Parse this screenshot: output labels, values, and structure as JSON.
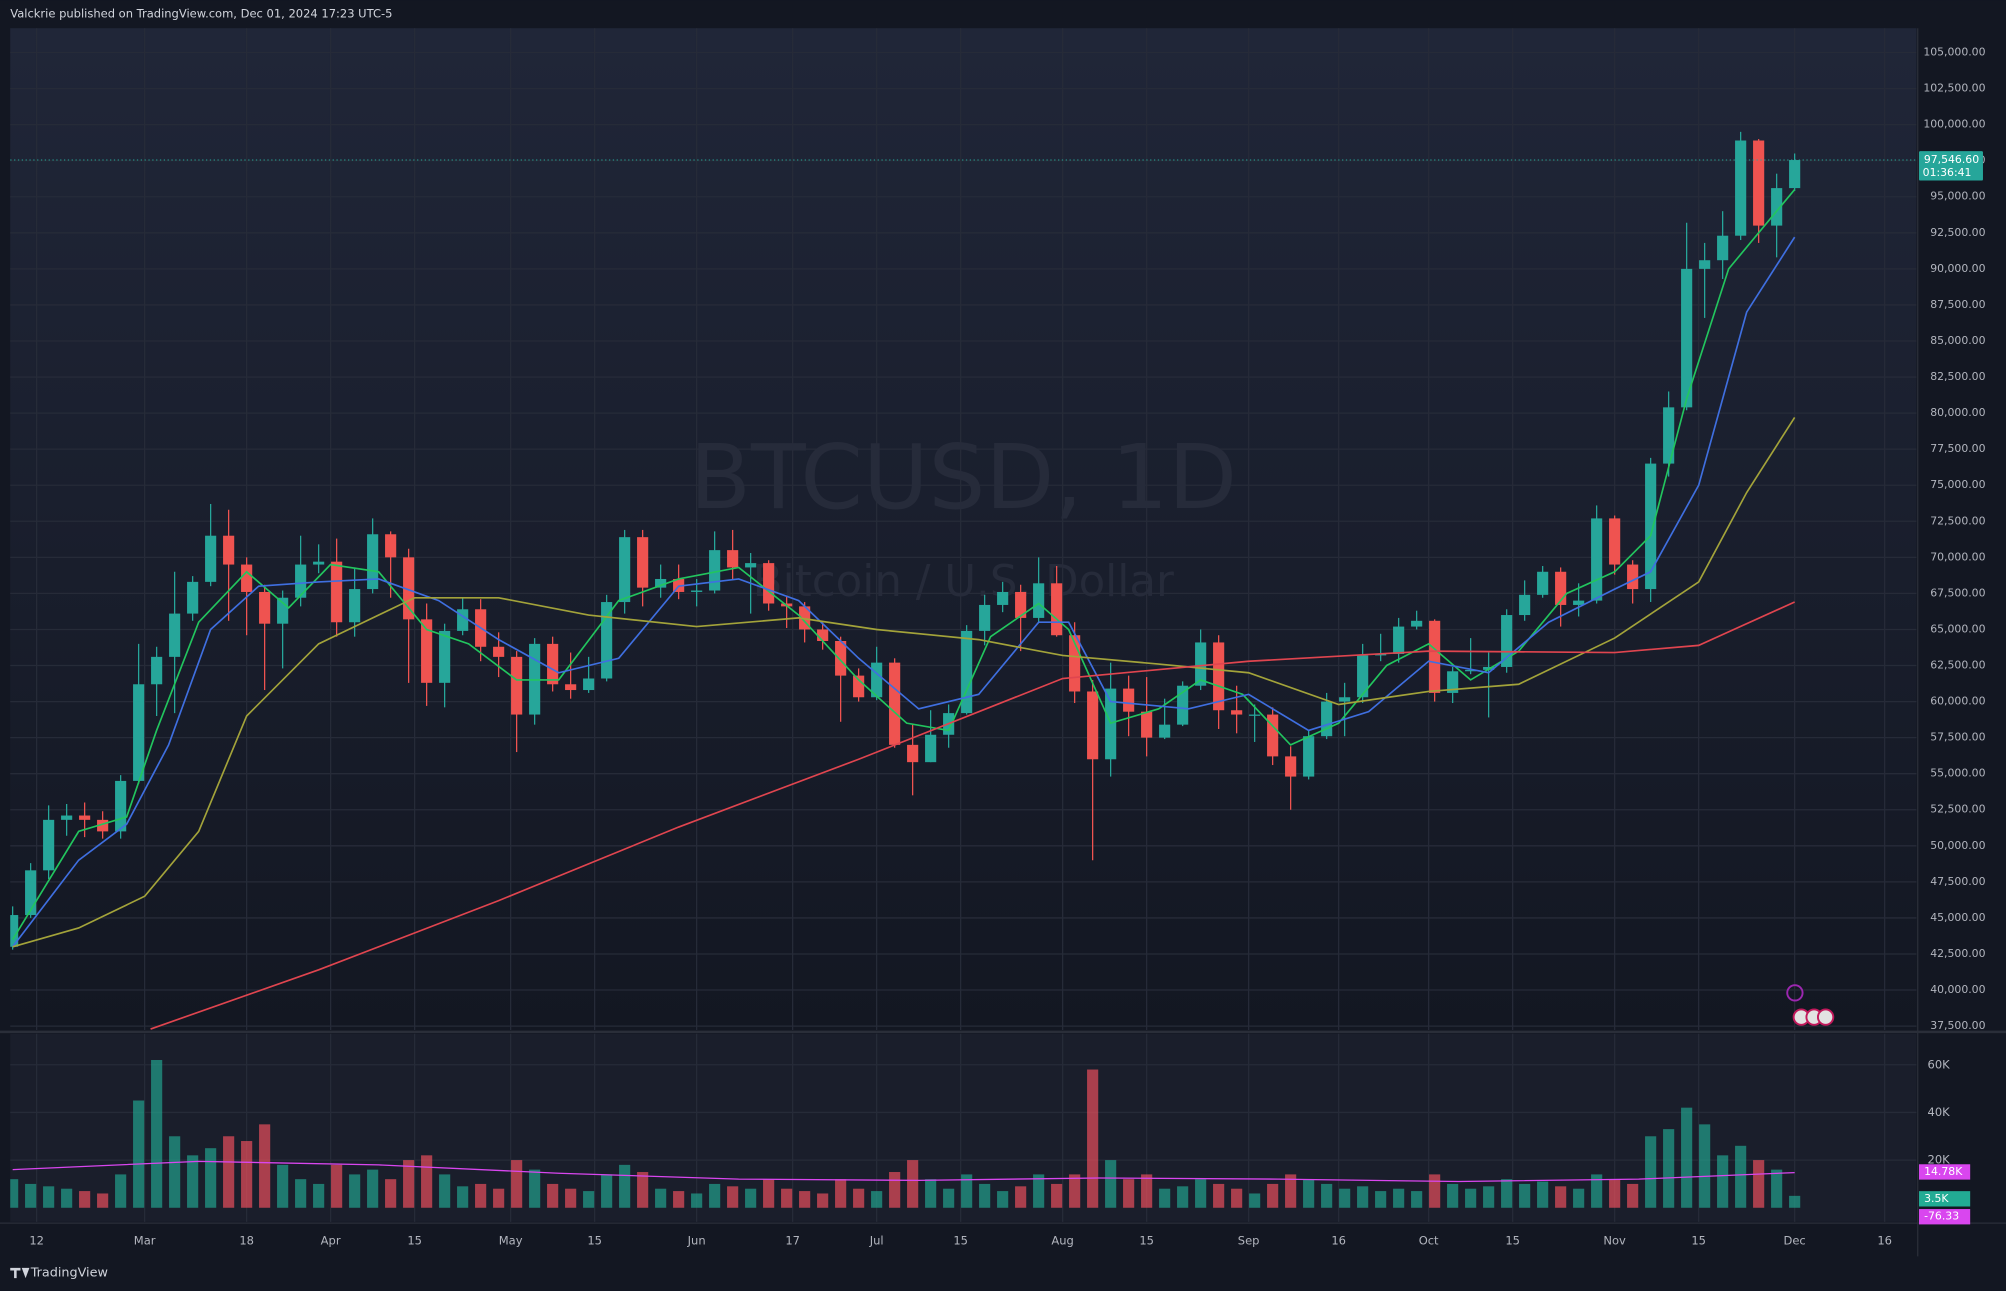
{
  "header": {
    "text": "Valckrie published on TradingView.com, Dec 01, 2024 17:23 UTC-5"
  },
  "footer": {
    "logo": "TradingView"
  },
  "chart_data": [
    {
      "type": "candlestick",
      "watermark": {
        "symbol": "BTCUSD, 1D",
        "description": "Bitcoin / U.S. Dollar"
      },
      "up_color": "#26a69a",
      "down_color": "#ef5350",
      "x": [
        39,
        42,
        45,
        48,
        51,
        54,
        57,
        60,
        63,
        66,
        69,
        72,
        75,
        78,
        81,
        84,
        87,
        90,
        93,
        96,
        99,
        102,
        105,
        108,
        111,
        114,
        117,
        120,
        123,
        126,
        129,
        132,
        135,
        138,
        141,
        144,
        147,
        150,
        153,
        156,
        159,
        162,
        165,
        168,
        171,
        174,
        177,
        180,
        183,
        186,
        189,
        192,
        195,
        198,
        201,
        204,
        207,
        210,
        213,
        216,
        219,
        222,
        225,
        228,
        231,
        234,
        237,
        240,
        243,
        246,
        249,
        252,
        255,
        258,
        261,
        264,
        267,
        270,
        273,
        276,
        279,
        282,
        285,
        288,
        291,
        294,
        297,
        300,
        303,
        306,
        309,
        312,
        315,
        318,
        321,
        324,
        327,
        330,
        333,
        336
      ],
      "open": [
        43000,
        45200,
        48300,
        51800,
        52100,
        51800,
        51000,
        54500,
        61200,
        63100,
        66100,
        68300,
        71500,
        69500,
        67600,
        65400,
        67200,
        69500,
        69700,
        65500,
        67800,
        71600,
        70000,
        65700,
        61300,
        64900,
        66400,
        63800,
        63100,
        59100,
        64000,
        61200,
        60800,
        61600,
        66900,
        71400,
        67900,
        68500,
        67600,
        67700,
        70500,
        69300,
        69600,
        66800,
        66600,
        65000,
        64200,
        61800,
        60300,
        62700,
        57000,
        55800,
        57700,
        59200,
        64900,
        66700,
        67600,
        65800,
        68200,
        64600,
        60700,
        56000,
        60900,
        59300,
        57500,
        58400,
        61100,
        64100,
        59400,
        59100,
        59100,
        56200,
        54800,
        57600,
        60000,
        60300,
        63200,
        63300,
        65200,
        65600,
        60600,
        62100,
        62200,
        62400,
        66000,
        67400,
        69000,
        66700,
        67000,
        72700,
        69500,
        67800,
        76500,
        80400,
        90000,
        90600,
        92300,
        98900,
        93000,
        95600
      ],
      "high": [
        45800,
        48800,
        52800,
        52900,
        53000,
        52400,
        54900,
        64000,
        63800,
        69000,
        68700,
        73700,
        73300,
        70000,
        68100,
        67700,
        71500,
        70900,
        71300,
        69300,
        72700,
        71800,
        70600,
        66800,
        65400,
        67200,
        67100,
        64800,
        63500,
        64400,
        64500,
        63400,
        63100,
        67400,
        71900,
        71900,
        69500,
        69500,
        68500,
        71800,
        71900,
        70300,
        69800,
        67300,
        66900,
        65500,
        64500,
        62300,
        63800,
        63000,
        58400,
        59400,
        59800,
        65300,
        67400,
        68300,
        68100,
        70000,
        69400,
        65500,
        61500,
        62700,
        61800,
        61700,
        60200,
        61400,
        65000,
        64600,
        61100,
        59800,
        59600,
        56900,
        58000,
        60600,
        61300,
        64000,
        64700,
        65800,
        66300,
        65700,
        62400,
        64400,
        63400,
        66400,
        68400,
        69400,
        69300,
        68200,
        73600,
        72900,
        69800,
        76900,
        81500,
        93200,
        91800,
        94000,
        99500,
        99000,
        96600,
        98000
      ],
      "low": [
        42800,
        45000,
        47700,
        50700,
        50600,
        50500,
        50500,
        54300,
        59000,
        59200,
        65600,
        68000,
        65600,
        64600,
        60800,
        62300,
        66600,
        68900,
        64500,
        64500,
        67500,
        67200,
        61300,
        59700,
        59600,
        64600,
        62800,
        61700,
        56500,
        58400,
        60700,
        60200,
        60600,
        61400,
        66100,
        66600,
        67200,
        67100,
        66600,
        67500,
        68500,
        66100,
        66300,
        65100,
        64100,
        63600,
        58600,
        60000,
        60100,
        56800,
        53500,
        55800,
        56800,
        59100,
        63900,
        66200,
        63500,
        65500,
        64500,
        59900,
        49000,
        54800,
        57600,
        56200,
        57400,
        58300,
        60800,
        58100,
        57800,
        57200,
        55600,
        52500,
        54600,
        57400,
        57600,
        59900,
        62800,
        62700,
        65000,
        60000,
        59900,
        61900,
        58900,
        62000,
        65600,
        67200,
        65200,
        65900,
        66800,
        68800,
        66800,
        66900,
        75600,
        80200,
        86600,
        89300,
        92000,
        91800,
        90800,
        95400
      ],
      "close": [
        45200,
        48300,
        51800,
        52100,
        51800,
        51000,
        54500,
        61200,
        63100,
        66100,
        68300,
        71500,
        69500,
        67600,
        65400,
        67200,
        69500,
        69700,
        65500,
        67800,
        71600,
        70000,
        65700,
        61300,
        64900,
        66400,
        63800,
        63100,
        59100,
        64000,
        61200,
        60800,
        61600,
        66900,
        71400,
        67900,
        68500,
        67600,
        67700,
        70500,
        69300,
        69600,
        66800,
        66600,
        65000,
        64200,
        61800,
        60300,
        62700,
        57000,
        55800,
        57700,
        59200,
        64900,
        66700,
        67600,
        65800,
        68200,
        64600,
        60700,
        56000,
        60900,
        59300,
        57500,
        58400,
        61100,
        64100,
        59400,
        59100,
        59100,
        56200,
        54800,
        57600,
        60000,
        60300,
        63200,
        63300,
        65200,
        65600,
        60600,
        62100,
        62200,
        62400,
        66000,
        67400,
        69000,
        66700,
        67000,
        72700,
        69500,
        67800,
        76500,
        80400,
        90000,
        90600,
        92300,
        98900,
        93000,
        95600,
        97546.6
      ],
      "moving_averages": [
        {
          "color": "#22c55e",
          "x": [
            39,
            50,
            58,
            63,
            70,
            78,
            85,
            92,
            100,
            108,
            115,
            123,
            130,
            140,
            150,
            160,
            170,
            180,
            188,
            195,
            202,
            210,
            215,
            222,
            230,
            237,
            244,
            252,
            260,
            268,
            275,
            282,
            290,
            298,
            306,
            312,
            318,
            325,
            336
          ],
          "values": [
            43500,
            51000,
            52000,
            58000,
            65500,
            69000,
            66500,
            69500,
            69000,
            65000,
            64000,
            61500,
            61500,
            67000,
            68500,
            69300,
            66000,
            61500,
            58500,
            58000,
            64500,
            66800,
            65000,
            58500,
            59500,
            61500,
            60500,
            57000,
            58500,
            62500,
            64000,
            61500,
            63500,
            67500,
            69000,
            71500,
            81000,
            90000,
            95500
          ]
        },
        {
          "color": "#3f6fe0",
          "x": [
            39,
            50,
            58,
            65,
            72,
            80,
            90,
            100,
            110,
            120,
            130,
            140,
            150,
            160,
            170,
            180,
            190,
            200,
            210,
            215,
            222,
            235,
            245,
            255,
            265,
            275,
            285,
            295,
            306,
            312,
            320,
            328,
            336
          ],
          "values": [
            43000,
            49000,
            51500,
            57000,
            65000,
            68000,
            68300,
            68500,
            67000,
            64300,
            62000,
            63000,
            68000,
            68500,
            67000,
            63000,
            59500,
            60500,
            65500,
            65500,
            60000,
            59500,
            60500,
            58000,
            59300,
            62800,
            62000,
            65500,
            67800,
            69000,
            75000,
            87000,
            92200
          ]
        },
        {
          "color": "#a3a33a",
          "x": [
            39,
            50,
            61,
            70,
            78,
            90,
            106,
            120,
            135,
            153,
            170,
            183,
            200,
            214,
            230,
            245,
            260,
            275,
            290,
            306,
            320,
            328,
            336
          ],
          "values": [
            43000,
            44300,
            46500,
            51000,
            59000,
            64000,
            67200,
            67200,
            66000,
            65200,
            65800,
            65000,
            64300,
            63200,
            62600,
            62000,
            59800,
            60700,
            61200,
            64400,
            68300,
            74500,
            79700
          ]
        },
        {
          "color": "#e0454f",
          "x": [
            62,
            90,
            120,
            150,
            180,
            214,
            245,
            275,
            306,
            320,
            336
          ],
          "values": [
            37300,
            41400,
            46200,
            51300,
            56000,
            61600,
            62800,
            63500,
            63400,
            63900,
            66900
          ]
        }
      ],
      "last_price": {
        "value": 97546.6,
        "label": "97,546.60",
        "countdown": "01:36:41"
      },
      "xlim": [
        38.6,
        356.3
      ],
      "ylim": [
        37234,
        106685
      ],
      "grid": true,
      "xticks": [
        {
          "value": 43,
          "label": "12"
        },
        {
          "value": 61,
          "label": "Mar"
        },
        {
          "value": 78,
          "label": "18"
        },
        {
          "value": 92,
          "label": "Apr"
        },
        {
          "value": 106,
          "label": "15"
        },
        {
          "value": 122,
          "label": "May"
        },
        {
          "value": 136,
          "label": "15"
        },
        {
          "value": 153,
          "label": "Jun"
        },
        {
          "value": 169,
          "label": "17"
        },
        {
          "value": 183,
          "label": "Jul"
        },
        {
          "value": 197,
          "label": "15"
        },
        {
          "value": 214,
          "label": "Aug"
        },
        {
          "value": 228,
          "label": "15"
        },
        {
          "value": 245,
          "label": "Sep"
        },
        {
          "value": 260,
          "label": "16"
        },
        {
          "value": 275,
          "label": "Oct"
        },
        {
          "value": 289,
          "label": "15"
        },
        {
          "value": 306,
          "label": "Nov"
        },
        {
          "value": 320,
          "label": "15"
        },
        {
          "value": 336,
          "label": "Dec"
        },
        {
          "value": 351,
          "label": "16"
        }
      ],
      "yticks": [
        {
          "value": 37500,
          "label": "37,500.00"
        },
        {
          "value": 40000,
          "label": "40,000.00"
        },
        {
          "value": 42500,
          "label": "42,500.00"
        },
        {
          "value": 45000,
          "label": "45,000.00"
        },
        {
          "value": 47500,
          "label": "47,500.00"
        },
        {
          "value": 50000,
          "label": "50,000.00"
        },
        {
          "value": 52500,
          "label": "52,500.00"
        },
        {
          "value": 55000,
          "label": "55,000.00"
        },
        {
          "value": 57500,
          "label": "57,500.00"
        },
        {
          "value": 60000,
          "label": "60,000.00"
        },
        {
          "value": 62500,
          "label": "62,500.00"
        },
        {
          "value": 65000,
          "label": "65,000.00"
        },
        {
          "value": 67500,
          "label": "67,500.00"
        },
        {
          "value": 70000,
          "label": "70,000.00"
        },
        {
          "value": 72500,
          "label": "72,500.00"
        },
        {
          "value": 75000,
          "label": "75,000.00"
        },
        {
          "value": 77500,
          "label": "77,500.00"
        },
        {
          "value": 80000,
          "label": "80,000.00"
        },
        {
          "value": 82500,
          "label": "82,500.00"
        },
        {
          "value": 85000,
          "label": "85,000.00"
        },
        {
          "value": 87500,
          "label": "87,500.00"
        },
        {
          "value": 90000,
          "label": "90,000.00"
        },
        {
          "value": 92500,
          "label": "92,500.00"
        },
        {
          "value": 95000,
          "label": "95,000.00"
        },
        {
          "value": 97500,
          "label": "97,500.00"
        },
        {
          "value": 100000,
          "label": "100,000.00"
        },
        {
          "value": 102500,
          "label": "102,500.00"
        },
        {
          "value": 105000,
          "label": "105,000.00"
        }
      ]
    },
    {
      "type": "bar",
      "up_color": "#22ab94",
      "down_color": "#f7525f",
      "x": [
        39,
        42,
        45,
        48,
        51,
        54,
        57,
        60,
        63,
        66,
        69,
        72,
        75,
        78,
        81,
        84,
        87,
        90,
        93,
        96,
        99,
        102,
        105,
        108,
        111,
        114,
        117,
        120,
        123,
        126,
        129,
        132,
        135,
        138,
        141,
        144,
        147,
        150,
        153,
        156,
        159,
        162,
        165,
        168,
        171,
        174,
        177,
        180,
        183,
        186,
        189,
        192,
        195,
        198,
        201,
        204,
        207,
        210,
        213,
        216,
        219,
        222,
        225,
        228,
        231,
        234,
        237,
        240,
        243,
        246,
        249,
        252,
        255,
        258,
        261,
        264,
        267,
        270,
        273,
        276,
        279,
        282,
        285,
        288,
        291,
        294,
        297,
        300,
        303,
        306,
        309,
        312,
        315,
        318,
        321,
        324,
        327,
        330,
        333,
        336
      ],
      "values": [
        12000,
        10000,
        9000,
        8000,
        7000,
        6000,
        14000,
        45000,
        62000,
        30000,
        22000,
        25000,
        30000,
        28000,
        35000,
        18000,
        12000,
        10000,
        18000,
        14000,
        16000,
        12000,
        20000,
        22000,
        14000,
        9000,
        10000,
        8000,
        20000,
        16000,
        10000,
        8000,
        7000,
        14000,
        18000,
        15000,
        8000,
        7000,
        6000,
        10000,
        9000,
        8000,
        12000,
        8000,
        7000,
        6000,
        12000,
        8000,
        7000,
        15000,
        20000,
        12000,
        8000,
        14000,
        10000,
        7000,
        9000,
        14000,
        10000,
        14000,
        58000,
        20000,
        12000,
        14000,
        8000,
        9000,
        12000,
        10000,
        8000,
        6000,
        10000,
        14000,
        12000,
        10000,
        8000,
        9000,
        7000,
        8000,
        7000,
        14000,
        10000,
        8000,
        9000,
        12000,
        10000,
        11000,
        9000,
        8000,
        14000,
        12000,
        10000,
        30000,
        33000,
        42000,
        35000,
        22000,
        26000,
        20000,
        16000,
        5000
      ],
      "ma": {
        "color": "#d946ef",
        "x": [
          39,
          70,
          100,
          130,
          160,
          190,
          220,
          250,
          280,
          310,
          336
        ],
        "values": [
          16000,
          19500,
          18000,
          14500,
          12000,
          11500,
          12500,
          12000,
          11000,
          12000,
          14780
        ]
      },
      "labels": [
        "14.78K",
        "3.5K",
        "-76.33"
      ],
      "ylim": [
        0,
        73000
      ],
      "yticks": [
        {
          "value": 20000,
          "label": "20K"
        },
        {
          "value": 40000,
          "label": "40K"
        },
        {
          "value": 60000,
          "label": "60K"
        }
      ]
    }
  ]
}
